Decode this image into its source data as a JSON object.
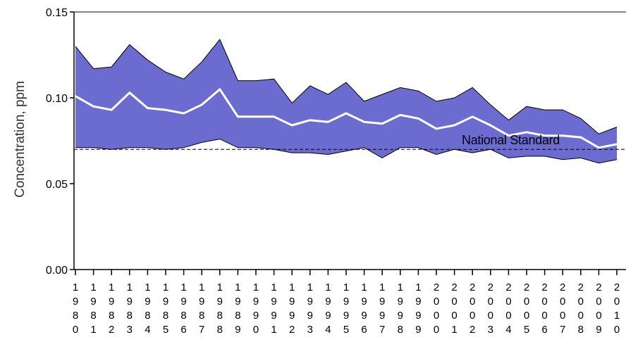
{
  "chart_data": {
    "type": "area",
    "ylabel": "Concentration, ppm",
    "ylim": [
      0.0,
      0.15
    ],
    "yticks": [
      0.0,
      0.05,
      0.1,
      0.15
    ],
    "ytick_labels": [
      "0.00",
      "0.05",
      "0.10",
      "0.15"
    ],
    "categories": [
      "1980",
      "1981",
      "1982",
      "1983",
      "1984",
      "1985",
      "1986",
      "1987",
      "1988",
      "1989",
      "1990",
      "1991",
      "1992",
      "1993",
      "1994",
      "1995",
      "1996",
      "1997",
      "1998",
      "1999",
      "2000",
      "2001",
      "2002",
      "2003",
      "2004",
      "2005",
      "2006",
      "2007",
      "2008",
      "2009",
      "2010"
    ],
    "x": [
      1980,
      1981,
      1982,
      1983,
      1984,
      1985,
      1986,
      1987,
      1988,
      1989,
      1990,
      1991,
      1992,
      1993,
      1994,
      1995,
      1996,
      1997,
      1998,
      1999,
      2000,
      2001,
      2002,
      2003,
      2004,
      2005,
      2006,
      2007,
      2008,
      2009,
      2010
    ],
    "xlim": [
      1980,
      2010
    ],
    "series": [
      {
        "role": "upper",
        "values": [
          0.13,
          0.117,
          0.118,
          0.131,
          0.122,
          0.115,
          0.111,
          0.121,
          0.134,
          0.11,
          0.11,
          0.111,
          0.097,
          0.107,
          0.102,
          0.109,
          0.098,
          0.102,
          0.106,
          0.104,
          0.098,
          0.1,
          0.106,
          0.096,
          0.087,
          0.095,
          0.093,
          0.093,
          0.088,
          0.079,
          0.083
        ]
      },
      {
        "role": "median",
        "values": [
          0.101,
          0.095,
          0.093,
          0.103,
          0.094,
          0.093,
          0.091,
          0.096,
          0.105,
          0.089,
          0.089,
          0.089,
          0.084,
          0.087,
          0.086,
          0.091,
          0.086,
          0.085,
          0.09,
          0.088,
          0.082,
          0.084,
          0.089,
          0.084,
          0.078,
          0.08,
          0.078,
          0.078,
          0.077,
          0.071,
          0.073
        ]
      },
      {
        "role": "lower",
        "values": [
          0.071,
          0.071,
          0.07,
          0.071,
          0.071,
          0.07,
          0.071,
          0.074,
          0.076,
          0.071,
          0.071,
          0.07,
          0.068,
          0.068,
          0.067,
          0.069,
          0.071,
          0.065,
          0.071,
          0.071,
          0.067,
          0.07,
          0.068,
          0.07,
          0.065,
          0.066,
          0.066,
          0.064,
          0.065,
          0.062,
          0.064
        ]
      }
    ],
    "reference_line": {
      "label": "National Standard",
      "value": 0.07,
      "style": "dashed"
    },
    "colors": {
      "band": "#6c6cd0",
      "median": "#ffffff",
      "outline": "#000000"
    },
    "grid": false
  }
}
